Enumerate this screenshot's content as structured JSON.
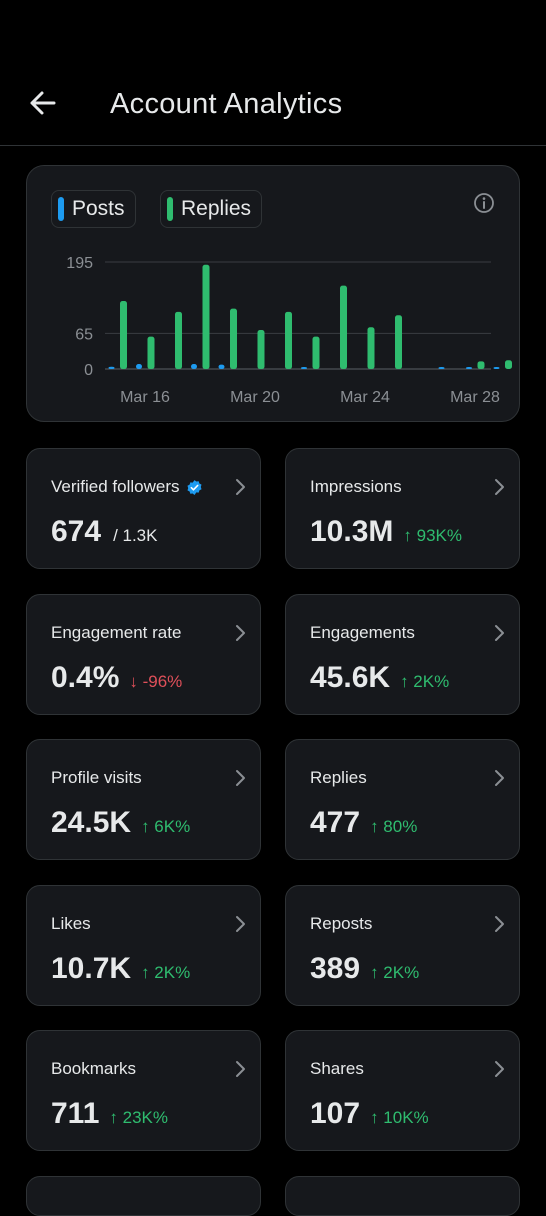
{
  "header": {
    "title": "Account Analytics"
  },
  "chart_data": {
    "type": "bar",
    "legend": [
      {
        "name": "Posts",
        "color": "#1d9bf0"
      },
      {
        "name": "Replies",
        "color": "#2fbc6f"
      }
    ],
    "x_tick_labels": [
      "Mar 16",
      "Mar 20",
      "Mar 24",
      "Mar 28"
    ],
    "y_ticks": [
      "195",
      "65",
      "0"
    ],
    "ylim": [
      0,
      195
    ],
    "grid": true,
    "categories": [
      "Mar 15",
      "Mar 16",
      "Mar 17",
      "Mar 18",
      "Mar 19",
      "Mar 20",
      "Mar 21",
      "Mar 22",
      "Mar 23",
      "Mar 24",
      "Mar 25",
      "Mar 26",
      "Mar 27",
      "Mar 28",
      "Mar 29"
    ],
    "series": [
      {
        "name": "Posts",
        "values": [
          4,
          9,
          0,
          9,
          8,
          0,
          0,
          3,
          0,
          0,
          0,
          0,
          2,
          3,
          3
        ]
      },
      {
        "name": "Replies",
        "values": [
          124,
          59,
          104,
          190,
          110,
          71,
          104,
          59,
          152,
          76,
          98,
          0,
          0,
          14,
          16
        ]
      }
    ]
  },
  "cards": [
    {
      "label": "Verified followers",
      "value": "674",
      "sub": "/ 1.3K",
      "delta": "",
      "dir": "",
      "verified": true
    },
    {
      "label": "Impressions",
      "value": "10.3M",
      "delta": "↑ 93K%",
      "dir": "up"
    },
    {
      "label": "Engagement rate",
      "value": "0.4%",
      "delta": "↓ -96%",
      "dir": "down"
    },
    {
      "label": "Engagements",
      "value": "45.6K",
      "delta": "↑ 2K%",
      "dir": "up"
    },
    {
      "label": "Profile visits",
      "value": "24.5K",
      "delta": "↑ 6K%",
      "dir": "up"
    },
    {
      "label": "Replies",
      "value": "477",
      "delta": "↑ 80%",
      "dir": "up"
    },
    {
      "label": "Likes",
      "value": "10.7K",
      "delta": "↑ 2K%",
      "dir": "up"
    },
    {
      "label": "Reposts",
      "value": "389",
      "delta": "↑ 2K%",
      "dir": "up"
    },
    {
      "label": "Bookmarks",
      "value": "711",
      "delta": "↑ 23K%",
      "dir": "up"
    },
    {
      "label": "Shares",
      "value": "107",
      "delta": "↑ 10K%",
      "dir": "up"
    }
  ]
}
